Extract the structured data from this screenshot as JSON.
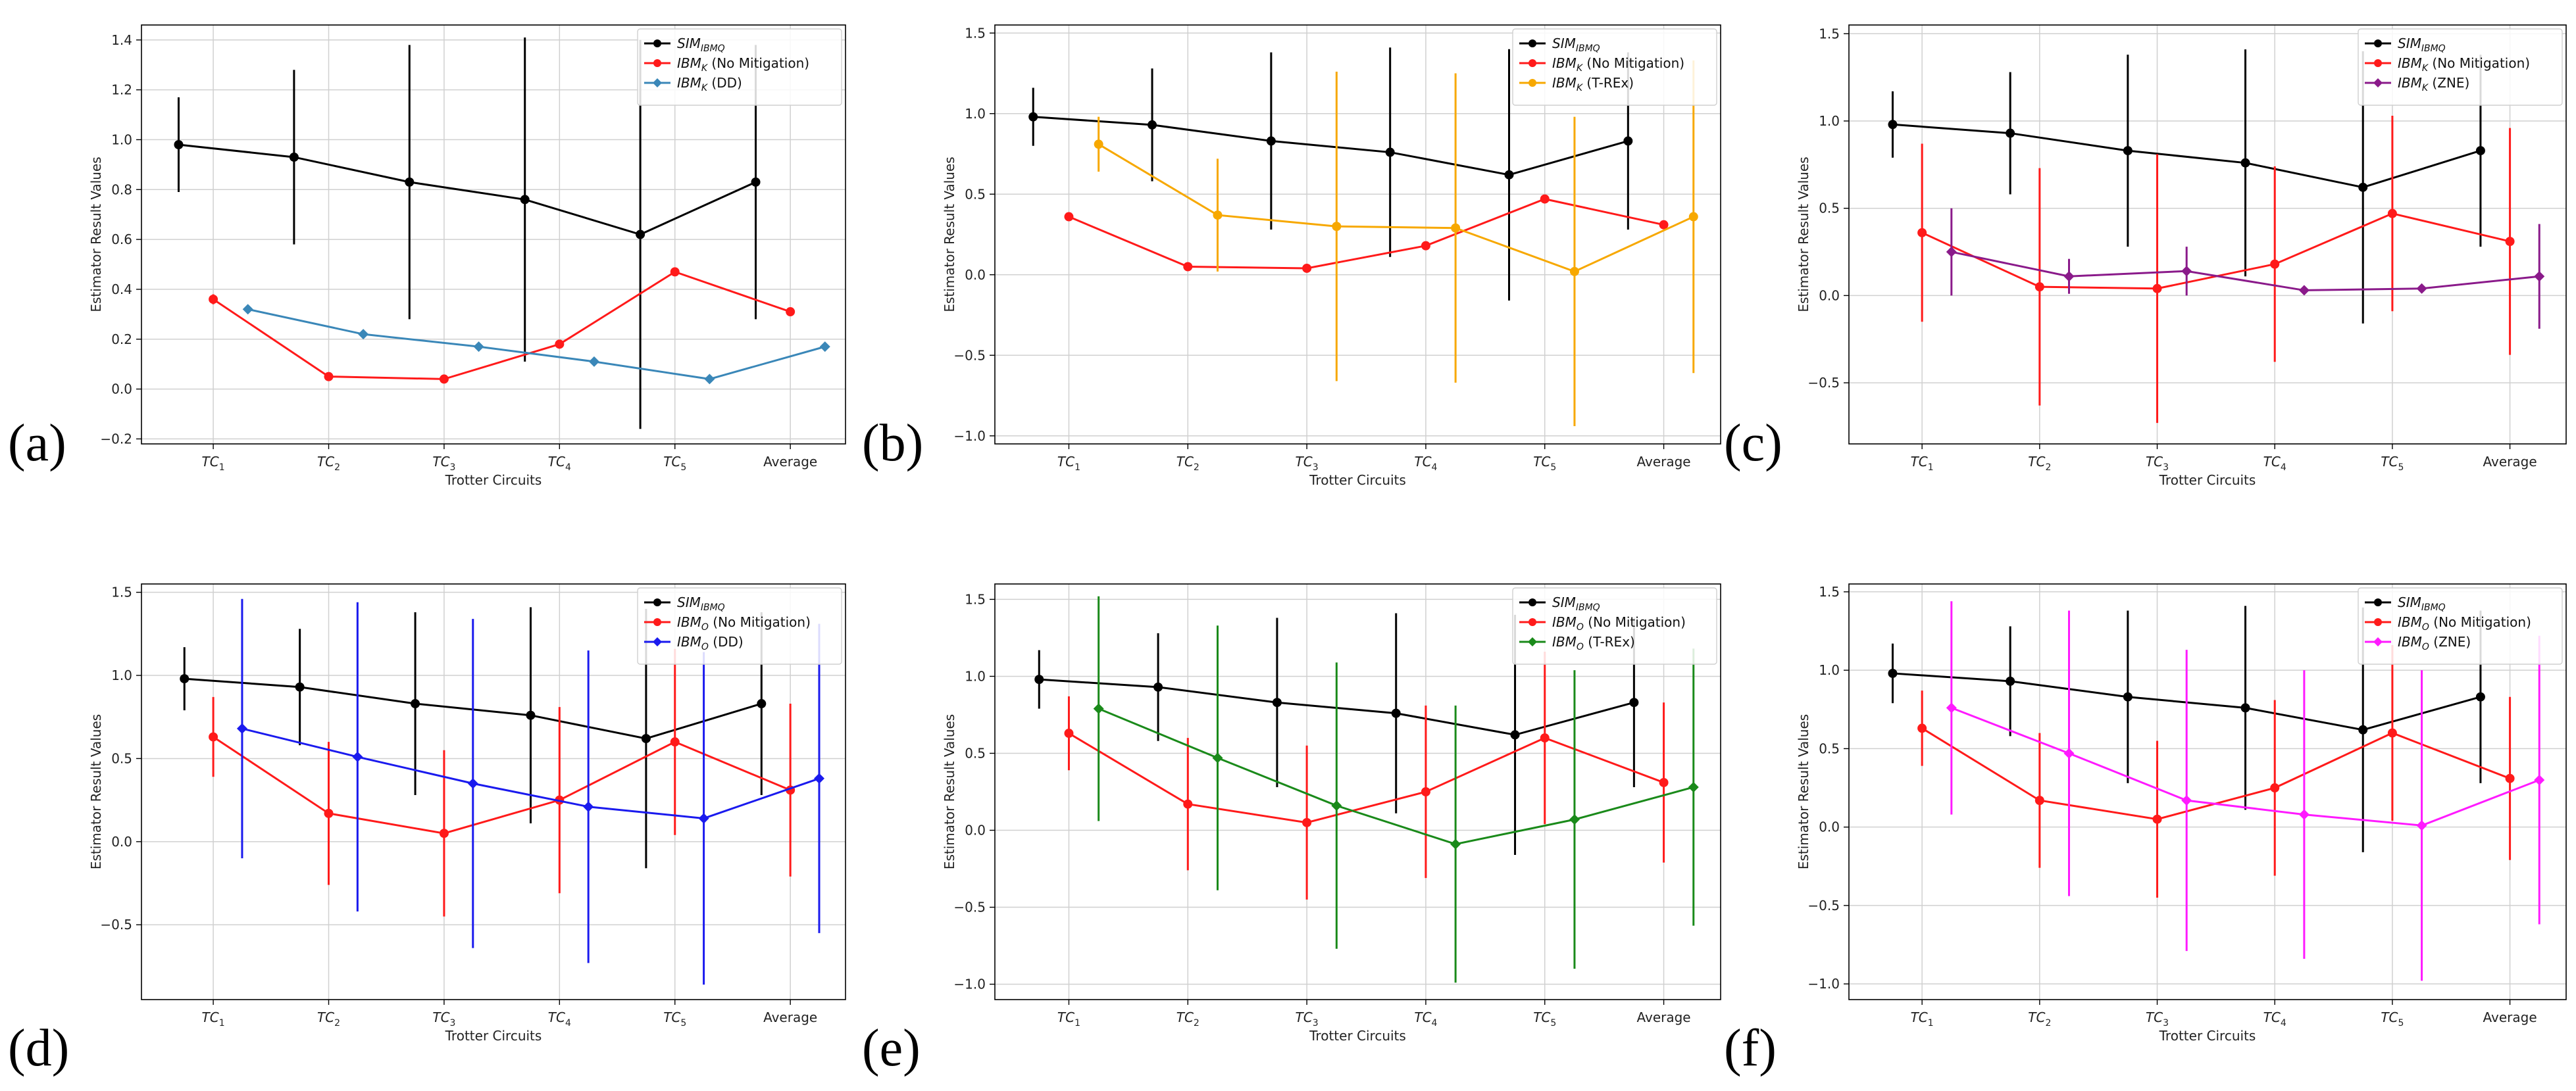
{
  "figure": {
    "panel_letters": [
      "(a)",
      "(b)",
      "(c)",
      "(d)",
      "(e)",
      "(f)"
    ]
  },
  "chart_data": [
    {
      "type": "line",
      "panel": "(a)",
      "xlabel": "Trotter Circuits",
      "ylabel": "Estimator Result Values",
      "categories": [
        "TC_1",
        "TC_2",
        "TC_3",
        "TC_4",
        "TC_5",
        "Average"
      ],
      "ylim": [
        -0.22,
        1.46
      ],
      "yticks": [
        -0.2,
        0.0,
        0.2,
        0.4,
        0.6,
        0.8,
        1.0,
        1.2,
        1.4
      ],
      "ytick_labels": [
        "−0.2",
        "0.0",
        "0.2",
        "0.4",
        "0.6",
        "0.8",
        "1.0",
        "1.2",
        "1.4"
      ],
      "grid": true,
      "legend_position": "top-right",
      "series": [
        {
          "name": "SIM_IBMQ",
          "label_main": "SIM",
          "label_sub": "IBMQ",
          "label_suffix": "",
          "color": "#000000",
          "marker": "circle",
          "offset": -0.3,
          "values": [
            0.98,
            0.93,
            0.83,
            0.76,
            0.62,
            0.83
          ],
          "errors": [
            0.19,
            0.35,
            0.55,
            0.65,
            0.78,
            0.55
          ]
        },
        {
          "name": "IBM_K (No Mitigation)",
          "label_main": "IBM",
          "label_sub": "K",
          "label_suffix": " (No Mitigation)",
          "color": "#ff1a1a",
          "marker": "circle",
          "offset": 0.0,
          "values": [
            0.36,
            0.05,
            0.04,
            0.18,
            0.47,
            0.31
          ],
          "errors": [
            0.02,
            0.0,
            0.0,
            0.0,
            0.0,
            0.0
          ]
        },
        {
          "name": "IBM_K (DD)",
          "label_main": "IBM",
          "label_sub": "K",
          "label_suffix": " (DD)",
          "color": "#3a87b8",
          "marker": "diamond",
          "offset": 0.3,
          "values": [
            0.32,
            0.22,
            0.17,
            0.11,
            0.04,
            0.17
          ],
          "errors": [
            0.0,
            0.0,
            0.0,
            0.0,
            0.0,
            0.0
          ]
        }
      ]
    },
    {
      "type": "line",
      "panel": "(b)",
      "xlabel": "Trotter Circuits",
      "ylabel": "Estimator Result Values",
      "categories": [
        "TC_1",
        "TC_2",
        "TC_3",
        "TC_4",
        "TC_5",
        "Average"
      ],
      "ylim": [
        -1.05,
        1.55
      ],
      "yticks": [
        -1.0,
        -0.5,
        0.0,
        0.5,
        1.0,
        1.5
      ],
      "ytick_labels": [
        "−1.0",
        "−0.5",
        "0.0",
        "0.5",
        "1.0",
        "1.5"
      ],
      "grid": true,
      "legend_position": "top-right",
      "series": [
        {
          "name": "SIM_IBMQ",
          "label_main": "SIM",
          "label_sub": "IBMQ",
          "label_suffix": "",
          "color": "#000000",
          "marker": "circle",
          "offset": -0.3,
          "values": [
            0.98,
            0.93,
            0.83,
            0.76,
            0.62,
            0.83
          ],
          "errors": [
            0.18,
            0.35,
            0.55,
            0.65,
            0.78,
            0.55
          ]
        },
        {
          "name": "IBM_K (No Mitigation)",
          "label_main": "IBM",
          "label_sub": "K",
          "label_suffix": " (No Mitigation)",
          "color": "#ff1a1a",
          "marker": "circle",
          "offset": 0.0,
          "values": [
            0.36,
            0.05,
            0.04,
            0.18,
            0.47,
            0.31
          ],
          "errors": [
            0.0,
            0.0,
            0.0,
            0.0,
            0.0,
            0.0
          ]
        },
        {
          "name": "IBM_K (T-REx)",
          "label_main": "IBM",
          "label_sub": "K",
          "label_suffix": " (T-REx)",
          "color": "#f7a800",
          "marker": "circle",
          "offset": 0.25,
          "values": [
            0.81,
            0.37,
            0.3,
            0.29,
            0.02,
            0.36
          ],
          "errors": [
            0.17,
            0.35,
            0.96,
            0.96,
            0.96,
            0.97
          ]
        }
      ]
    },
    {
      "type": "line",
      "panel": "(c)",
      "xlabel": "Trotter Circuits",
      "ylabel": "Estimator Result Values",
      "categories": [
        "TC_1",
        "TC_2",
        "TC_3",
        "TC_4",
        "TC_5",
        "Average"
      ],
      "ylim": [
        -0.85,
        1.55
      ],
      "yticks": [
        -0.5,
        0.0,
        0.5,
        1.0,
        1.5
      ],
      "ytick_labels": [
        "−0.5",
        "0.0",
        "0.5",
        "1.0",
        "1.5"
      ],
      "grid": true,
      "legend_position": "top-right",
      "series": [
        {
          "name": "SIM_IBMQ",
          "label_main": "SIM",
          "label_sub": "IBMQ",
          "label_suffix": "",
          "color": "#000000",
          "marker": "circle",
          "offset": -0.25,
          "values": [
            0.98,
            0.93,
            0.83,
            0.76,
            0.62,
            0.83
          ],
          "errors": [
            0.19,
            0.35,
            0.55,
            0.65,
            0.78,
            0.55
          ]
        },
        {
          "name": "IBM_K (No Mitigation)",
          "label_main": "IBM",
          "label_sub": "K",
          "label_suffix": " (No Mitigation)",
          "color": "#ff1a1a",
          "marker": "circle",
          "offset": 0.0,
          "values": [
            0.36,
            0.05,
            0.04,
            0.18,
            0.47,
            0.31
          ],
          "errors": [
            0.51,
            0.68,
            0.77,
            0.56,
            0.56,
            0.65
          ]
        },
        {
          "name": "IBM_K (ZNE)",
          "label_main": "IBM",
          "label_sub": "K",
          "label_suffix": " (ZNE)",
          "color": "#8a1a8a",
          "marker": "diamond",
          "offset": 0.25,
          "values": [
            0.25,
            0.11,
            0.14,
            0.03,
            0.04,
            0.11
          ],
          "errors": [
            0.25,
            0.1,
            0.14,
            0.0,
            0.0,
            0.3
          ]
        }
      ]
    },
    {
      "type": "line",
      "panel": "(d)",
      "xlabel": "Trotter Circuits",
      "ylabel": "Estimator Result Values",
      "categories": [
        "TC_1",
        "TC_2",
        "TC_3",
        "TC_4",
        "TC_5",
        "Average"
      ],
      "ylim": [
        -0.95,
        1.55
      ],
      "yticks": [
        -0.5,
        0.0,
        0.5,
        1.0,
        1.5
      ],
      "ytick_labels": [
        "−0.5",
        "0.0",
        "0.5",
        "1.0",
        "1.5"
      ],
      "grid": true,
      "legend_position": "top-right",
      "series": [
        {
          "name": "SIM_IBMQ",
          "label_main": "SIM",
          "label_sub": "IBMQ",
          "label_suffix": "",
          "color": "#000000",
          "marker": "circle",
          "offset": -0.25,
          "values": [
            0.98,
            0.93,
            0.83,
            0.76,
            0.62,
            0.83
          ],
          "errors": [
            0.19,
            0.35,
            0.55,
            0.65,
            0.78,
            0.55
          ]
        },
        {
          "name": "IBM_O (No Mitigation)",
          "label_main": "IBM",
          "label_sub": "O",
          "label_suffix": " (No Mitigation)",
          "color": "#ff1a1a",
          "marker": "circle",
          "offset": 0.0,
          "values": [
            0.63,
            0.17,
            0.05,
            0.25,
            0.6,
            0.31
          ],
          "errors": [
            0.24,
            0.43,
            0.5,
            0.56,
            0.56,
            0.52
          ]
        },
        {
          "name": "IBM_O (DD)",
          "label_main": "IBM",
          "label_sub": "O",
          "label_suffix": " (DD)",
          "color": "#1a1aee",
          "marker": "diamond",
          "offset": 0.25,
          "values": [
            0.68,
            0.51,
            0.35,
            0.21,
            0.14,
            0.38
          ],
          "errors": [
            0.78,
            0.93,
            0.99,
            0.94,
            1.0,
            0.93
          ]
        }
      ]
    },
    {
      "type": "line",
      "panel": "(e)",
      "xlabel": "Trotter Circuits",
      "ylabel": "Estimator Result Values",
      "categories": [
        "TC_1",
        "TC_2",
        "TC_3",
        "TC_4",
        "TC_5",
        "Average"
      ],
      "ylim": [
        -1.1,
        1.6
      ],
      "yticks": [
        -1.0,
        -0.5,
        0.0,
        0.5,
        1.0,
        1.5
      ],
      "ytick_labels": [
        "−1.0",
        "−0.5",
        "0.0",
        "0.5",
        "1.0",
        "1.5"
      ],
      "grid": true,
      "legend_position": "top-right",
      "series": [
        {
          "name": "SIM_IBMQ",
          "label_main": "SIM",
          "label_sub": "IBMQ",
          "label_suffix": "",
          "color": "#000000",
          "marker": "circle",
          "offset": -0.25,
          "values": [
            0.98,
            0.93,
            0.83,
            0.76,
            0.62,
            0.83
          ],
          "errors": [
            0.19,
            0.35,
            0.55,
            0.65,
            0.78,
            0.55
          ]
        },
        {
          "name": "IBM_O (No Mitigation)",
          "label_main": "IBM",
          "label_sub": "O",
          "label_suffix": " (No Mitigation)",
          "color": "#ff1a1a",
          "marker": "circle",
          "offset": 0.0,
          "values": [
            0.63,
            0.17,
            0.05,
            0.25,
            0.6,
            0.31
          ],
          "errors": [
            0.24,
            0.43,
            0.5,
            0.56,
            0.56,
            0.52
          ]
        },
        {
          "name": "IBM_O (T-REx)",
          "label_main": "IBM",
          "label_sub": "O",
          "label_suffix": " (T-REx)",
          "color": "#1a8a1a",
          "marker": "diamond",
          "offset": 0.25,
          "values": [
            0.79,
            0.47,
            0.16,
            -0.09,
            0.07,
            0.28
          ],
          "errors": [
            0.73,
            0.86,
            0.93,
            0.9,
            0.97,
            0.9
          ]
        }
      ]
    },
    {
      "type": "line",
      "panel": "(f)",
      "xlabel": "Trotter Circuits",
      "ylabel": "Estimator Result Values",
      "categories": [
        "TC_1",
        "TC_2",
        "TC_3",
        "TC_4",
        "TC_5",
        "Average"
      ],
      "ylim": [
        -1.1,
        1.55
      ],
      "yticks": [
        -1.0,
        -0.5,
        0.0,
        0.5,
        1.0,
        1.5
      ],
      "ytick_labels": [
        "−1.0",
        "−0.5",
        "0.0",
        "0.5",
        "1.0",
        "1.5"
      ],
      "grid": true,
      "legend_position": "top-right",
      "series": [
        {
          "name": "SIM_IBMQ",
          "label_main": "SIM",
          "label_sub": "IBMQ",
          "label_suffix": "",
          "color": "#000000",
          "marker": "circle",
          "offset": -0.25,
          "values": [
            0.98,
            0.93,
            0.83,
            0.76,
            0.62,
            0.83
          ],
          "errors": [
            0.19,
            0.35,
            0.55,
            0.65,
            0.78,
            0.55
          ]
        },
        {
          "name": "IBM_O (No Mitigation)",
          "label_main": "IBM",
          "label_sub": "O",
          "label_suffix": " (No Mitigation)",
          "color": "#ff1a1a",
          "marker": "circle",
          "offset": 0.0,
          "values": [
            0.63,
            0.17,
            0.05,
            0.25,
            0.6,
            0.31
          ],
          "errors": [
            0.24,
            0.43,
            0.5,
            0.56,
            0.56,
            0.52
          ]
        },
        {
          "name": "IBM_O (ZNE)",
          "label_main": "IBM",
          "label_sub": "O",
          "label_suffix": " (ZNE)",
          "color": "#ff1aff",
          "marker": "diamond",
          "offset": 0.25,
          "values": [
            0.76,
            0.47,
            0.17,
            0.08,
            0.01,
            0.3
          ],
          "errors": [
            0.68,
            0.91,
            0.96,
            0.92,
            0.99,
            0.92
          ]
        }
      ]
    }
  ]
}
